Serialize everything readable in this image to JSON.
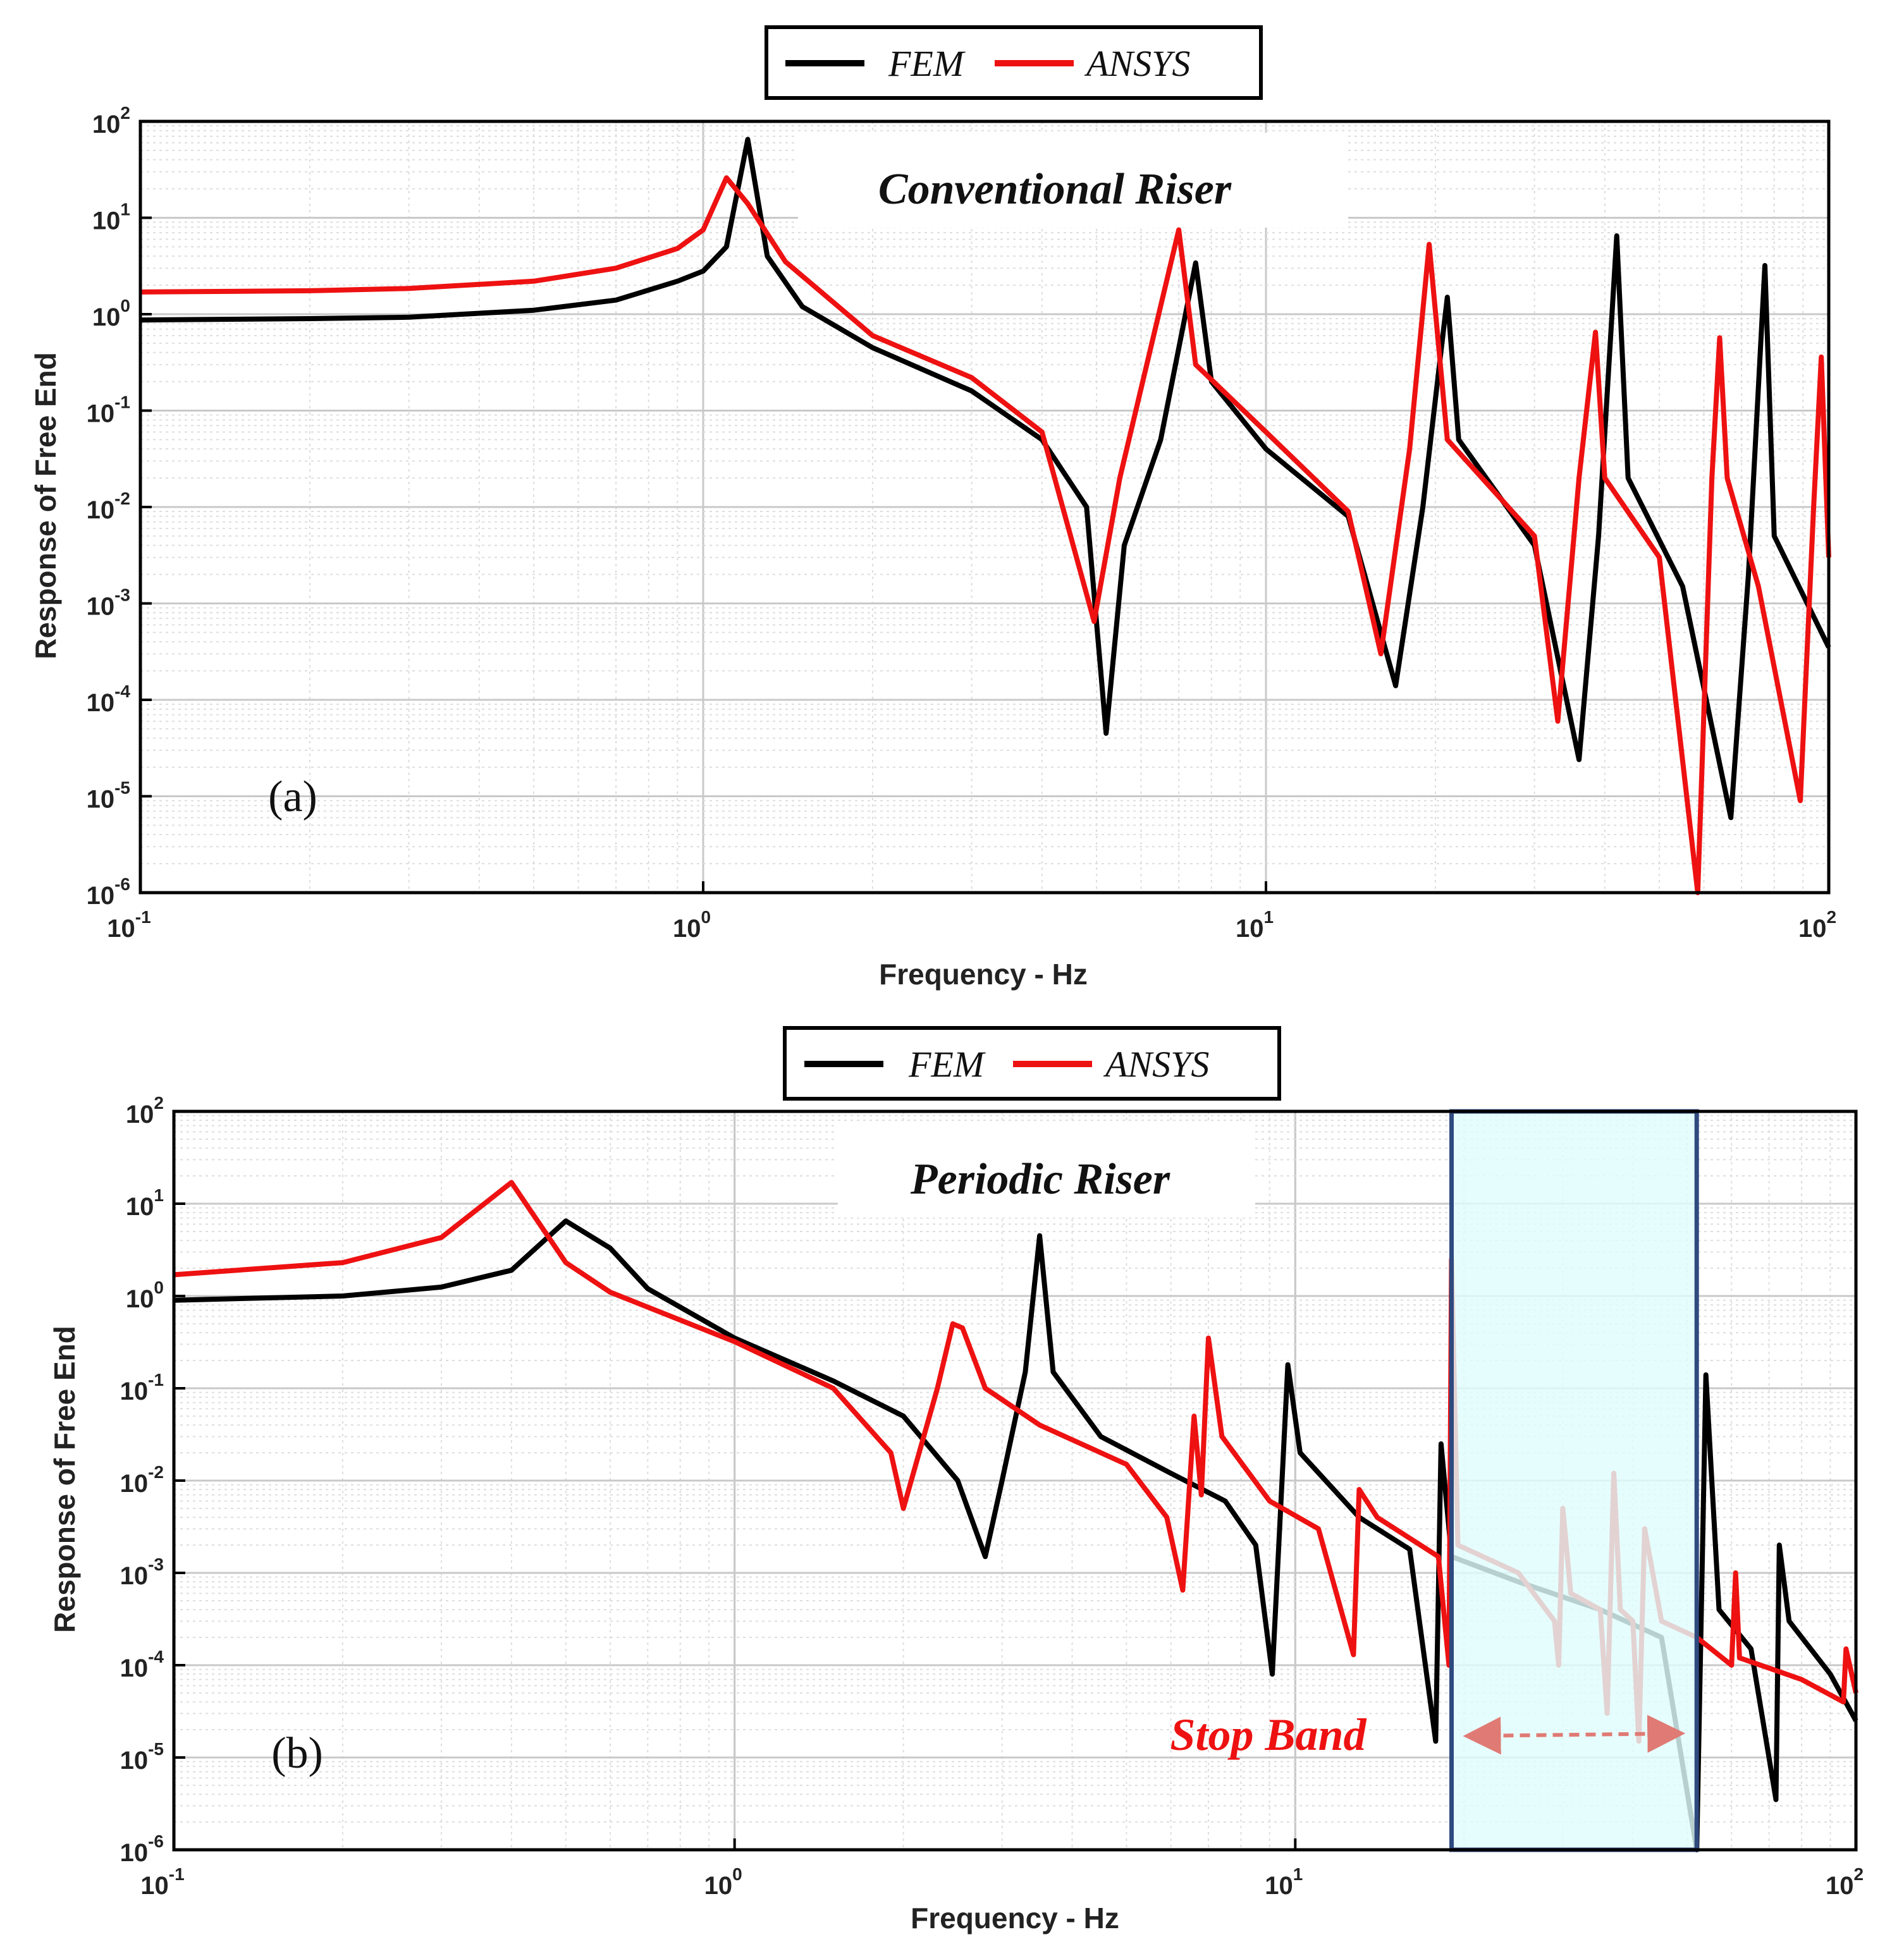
{
  "figure": {
    "colors": {
      "fem": "#000000",
      "ansys": "#ee1111",
      "stop_band_fill": "#e0fcfd",
      "stop_band_border": "#2e4a7e",
      "stop_arrow": "#e07a74"
    },
    "legend": {
      "fem": "FEM",
      "ansys": "ANSYS"
    }
  },
  "chart_data": [
    {
      "type": "line",
      "id": "a",
      "panel_label": "(a)",
      "title": "Conventional Riser",
      "xlabel": "Frequency - Hz",
      "ylabel": "Response of Free End",
      "xscale": "log",
      "yscale": "log",
      "xlim": [
        0.1,
        100
      ],
      "ylim": [
        1e-06,
        100
      ],
      "x_ticks": [
        {
          "base": "10",
          "exp": "-1"
        },
        {
          "base": "10",
          "exp": "0"
        },
        {
          "base": "10",
          "exp": "1"
        },
        {
          "base": "10",
          "exp": "2"
        }
      ],
      "y_ticks": [
        {
          "base": "10",
          "exp": "-6"
        },
        {
          "base": "10",
          "exp": "-5"
        },
        {
          "base": "10",
          "exp": "-4"
        },
        {
          "base": "10",
          "exp": "-3"
        },
        {
          "base": "10",
          "exp": "-2"
        },
        {
          "base": "10",
          "exp": "-1"
        },
        {
          "base": "10",
          "exp": "0"
        },
        {
          "base": "10",
          "exp": "1"
        },
        {
          "base": "10",
          "exp": "2"
        }
      ],
      "grid": true,
      "legend_position": "top-center",
      "series": [
        {
          "name": "FEM",
          "base_level": 0.9,
          "resonances": [
            1.2,
            7.5,
            21,
            42,
            77
          ],
          "peaks": [
            65,
            3.4,
            1.5,
            6.5,
            3.2
          ],
          "antiresonances": [
            5.2,
            17,
            36,
            67
          ],
          "antiresonance_minima": [
            4.5e-05,
            0.00014,
            2.4e-05,
            6e-06
          ],
          "points": [
            [
              0.1,
              0.87
            ],
            [
              0.2,
              0.9
            ],
            [
              0.3,
              0.93
            ],
            [
              0.5,
              1.1
            ],
            [
              0.7,
              1.4
            ],
            [
              0.9,
              2.2
            ],
            [
              1.0,
              2.8
            ],
            [
              1.1,
              5.0
            ],
            [
              1.2,
              65
            ],
            [
              1.3,
              4.0
            ],
            [
              1.5,
              1.2
            ],
            [
              2.0,
              0.45
            ],
            [
              3.0,
              0.16
            ],
            [
              4.0,
              0.05
            ],
            [
              4.8,
              0.01
            ],
            [
              5.2,
              4.5e-05
            ],
            [
              5.6,
              0.004
            ],
            [
              6.5,
              0.05
            ],
            [
              7.5,
              3.4
            ],
            [
              8.0,
              0.2
            ],
            [
              10,
              0.04
            ],
            [
              14,
              0.008
            ],
            [
              17,
              0.00014
            ],
            [
              19,
              0.01
            ],
            [
              21,
              1.5
            ],
            [
              22,
              0.05
            ],
            [
              30,
              0.004
            ],
            [
              36,
              2.4e-05
            ],
            [
              39,
              0.005
            ],
            [
              42,
              6.5
            ],
            [
              44,
              0.02
            ],
            [
              55,
              0.0015
            ],
            [
              67,
              6e-06
            ],
            [
              72,
              0.002
            ],
            [
              77,
              3.2
            ],
            [
              80,
              0.005
            ],
            [
              100,
              0.00035
            ]
          ]
        },
        {
          "name": "ANSYS",
          "base_level": 1.7,
          "resonances": [
            1.1,
            7.0,
            19.5,
            38.5,
            64,
            97
          ],
          "peaks": [
            26,
            7.5,
            5.3,
            0.65,
            0.57,
            0.36
          ],
          "antiresonances": [
            4.95,
            16,
            33,
            58.5,
            89
          ],
          "antiresonance_minima": [
            0.00065,
            0.0003,
            6e-05,
            1e-06,
            9e-06
          ],
          "points": [
            [
              0.1,
              1.7
            ],
            [
              0.2,
              1.75
            ],
            [
              0.3,
              1.85
            ],
            [
              0.5,
              2.2
            ],
            [
              0.7,
              3.0
            ],
            [
              0.9,
              4.8
            ],
            [
              1.0,
              7.5
            ],
            [
              1.1,
              26
            ],
            [
              1.2,
              14
            ],
            [
              1.4,
              3.5
            ],
            [
              2.0,
              0.6
            ],
            [
              3.0,
              0.22
            ],
            [
              4.0,
              0.06
            ],
            [
              4.95,
              0.00065
            ],
            [
              5.5,
              0.02
            ],
            [
              7.0,
              7.5
            ],
            [
              7.5,
              0.3
            ],
            [
              10,
              0.06
            ],
            [
              14,
              0.009
            ],
            [
              16,
              0.0003
            ],
            [
              18,
              0.04
            ],
            [
              19.5,
              5.3
            ],
            [
              21,
              0.05
            ],
            [
              30,
              0.005
            ],
            [
              33,
              6e-05
            ],
            [
              36,
              0.02
            ],
            [
              38.5,
              0.65
            ],
            [
              40,
              0.02
            ],
            [
              50,
              0.003
            ],
            [
              58.5,
              1e-06
            ],
            [
              62,
              0.02
            ],
            [
              64,
              0.57
            ],
            [
              66,
              0.02
            ],
            [
              75,
              0.0015
            ],
            [
              89,
              9e-06
            ],
            [
              94,
              0.01
            ],
            [
              97,
              0.36
            ],
            [
              100,
              0.003
            ]
          ]
        }
      ]
    },
    {
      "type": "line",
      "id": "b",
      "panel_label": "(b)",
      "title": "Periodic Riser",
      "xlabel": "Frequency - Hz",
      "ylabel": "Response of Free End",
      "xscale": "log",
      "yscale": "log",
      "xlim": [
        0.1,
        100
      ],
      "ylim": [
        1e-06,
        100
      ],
      "x_ticks": [
        {
          "base": "10",
          "exp": "-1"
        },
        {
          "base": "10",
          "exp": "0"
        },
        {
          "base": "10",
          "exp": "1"
        },
        {
          "base": "10",
          "exp": "2"
        }
      ],
      "y_ticks": [
        {
          "base": "10",
          "exp": "-6"
        },
        {
          "base": "10",
          "exp": "-5"
        },
        {
          "base": "10",
          "exp": "-4"
        },
        {
          "base": "10",
          "exp": "-3"
        },
        {
          "base": "10",
          "exp": "-2"
        },
        {
          "base": "10",
          "exp": "-1"
        },
        {
          "base": "10",
          "exp": "0"
        },
        {
          "base": "10",
          "exp": "1"
        },
        {
          "base": "10",
          "exp": "2"
        }
      ],
      "grid": true,
      "legend_position": "top-center",
      "stop_band": {
        "label": "Stop Band",
        "x_range": [
          19,
          52
        ]
      },
      "series": [
        {
          "name": "FEM",
          "points": [
            [
              0.1,
              0.9
            ],
            [
              0.2,
              1.0
            ],
            [
              0.3,
              1.25
            ],
            [
              0.4,
              1.9
            ],
            [
              0.5,
              6.5
            ],
            [
              0.6,
              3.3
            ],
            [
              0.7,
              1.2
            ],
            [
              1.0,
              0.35
            ],
            [
              1.5,
              0.12
            ],
            [
              2.0,
              0.05
            ],
            [
              2.5,
              0.01
            ],
            [
              2.8,
              0.0015
            ],
            [
              3.0,
              0.01
            ],
            [
              3.3,
              0.15
            ],
            [
              3.5,
              4.5
            ],
            [
              3.7,
              0.15
            ],
            [
              4.5,
              0.03
            ],
            [
              6,
              0.012
            ],
            [
              7.5,
              0.006
            ],
            [
              8.5,
              0.002
            ],
            [
              9.1,
              8e-05
            ],
            [
              9.4,
              0.004
            ],
            [
              9.7,
              0.18
            ],
            [
              10.2,
              0.02
            ],
            [
              13,
              0.004
            ],
            [
              16,
              0.0018
            ],
            [
              17.8,
              1.5e-05
            ],
            [
              18.2,
              0.025
            ],
            [
              19,
              0.0015
            ],
            [
              25,
              0.0008
            ],
            [
              35,
              0.0004
            ],
            [
              45,
              0.0002
            ],
            [
              52,
              1e-06
            ],
            [
              54,
              0.14
            ],
            [
              57,
              0.0004
            ],
            [
              65,
              0.00015
            ],
            [
              72,
              3.5e-06
            ],
            [
              73,
              0.002
            ],
            [
              76,
              0.0003
            ],
            [
              90,
              8e-05
            ],
            [
              100,
              2.5e-05
            ]
          ]
        },
        {
          "name": "ANSYS",
          "points": [
            [
              0.1,
              1.7
            ],
            [
              0.2,
              2.3
            ],
            [
              0.3,
              4.3
            ],
            [
              0.4,
              17
            ],
            [
              0.5,
              2.3
            ],
            [
              0.6,
              1.1
            ],
            [
              1.0,
              0.32
            ],
            [
              1.5,
              0.1
            ],
            [
              1.9,
              0.02
            ],
            [
              2.0,
              0.005
            ],
            [
              2.3,
              0.1
            ],
            [
              2.45,
              0.5
            ],
            [
              2.55,
              0.45
            ],
            [
              2.8,
              0.1
            ],
            [
              3.5,
              0.04
            ],
            [
              5,
              0.015
            ],
            [
              5.9,
              0.004
            ],
            [
              6.3,
              0.00065
            ],
            [
              6.6,
              0.05
            ],
            [
              6.8,
              0.007
            ],
            [
              7.0,
              0.35
            ],
            [
              7.4,
              0.03
            ],
            [
              9,
              0.006
            ],
            [
              11,
              0.003
            ],
            [
              12.7,
              0.00013
            ],
            [
              13,
              0.008
            ],
            [
              14,
              0.004
            ],
            [
              18,
              0.0015
            ],
            [
              18.8,
              0.0001
            ],
            [
              19,
              2.5
            ],
            [
              19.5,
              0.002
            ],
            [
              25,
              0.001
            ],
            [
              29,
              0.0003
            ],
            [
              29.5,
              0.0001
            ],
            [
              30,
              0.005
            ],
            [
              31,
              0.0006
            ],
            [
              35,
              0.0004
            ],
            [
              36,
              3e-05
            ],
            [
              37,
              0.012
            ],
            [
              38,
              0.0004
            ],
            [
              40,
              0.0003
            ],
            [
              41,
              1.5e-05
            ],
            [
              42,
              0.003
            ],
            [
              45,
              0.0003
            ],
            [
              52,
              0.0002
            ],
            [
              60,
              0.0001
            ],
            [
              61,
              0.001
            ],
            [
              62,
              0.00012
            ],
            [
              80,
              7e-05
            ],
            [
              95,
              4e-05
            ],
            [
              96,
              0.00015
            ],
            [
              100,
              5e-05
            ]
          ]
        }
      ]
    }
  ]
}
